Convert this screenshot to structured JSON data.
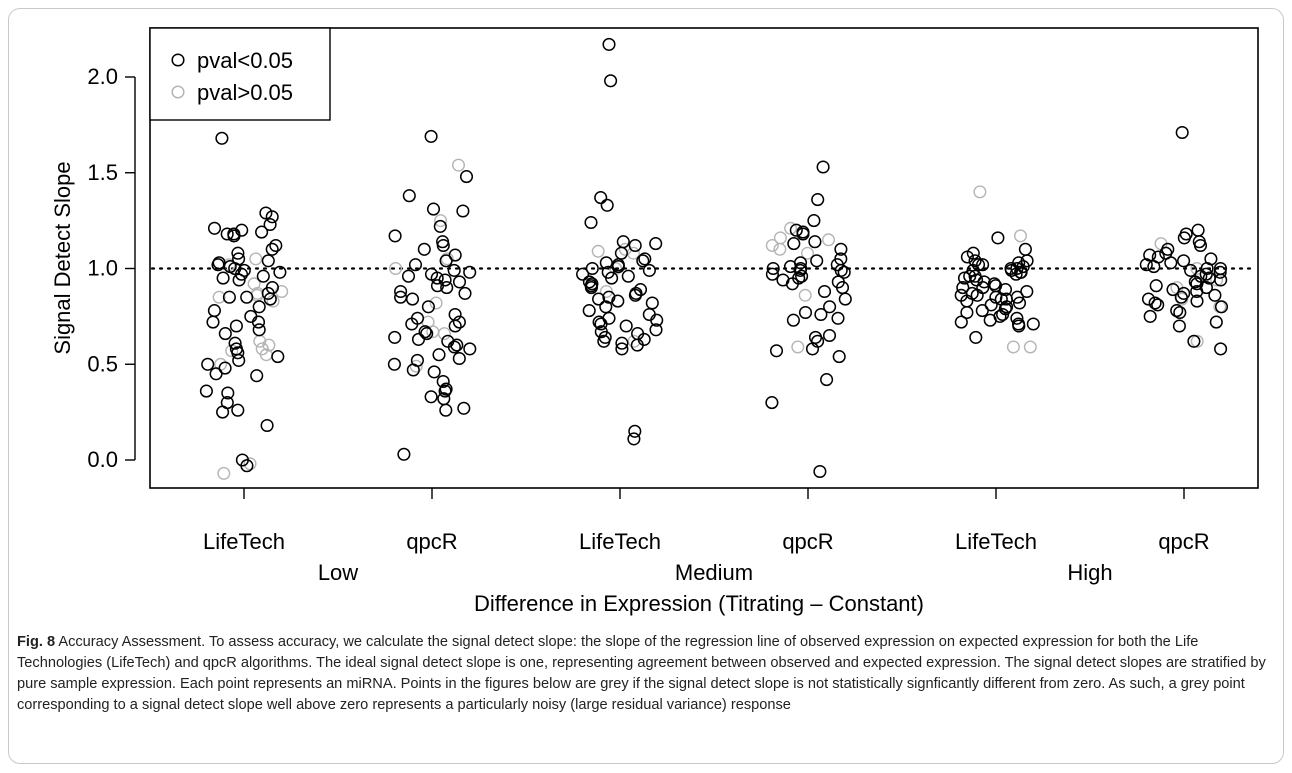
{
  "chart_data": {
    "type": "scatter",
    "title": "",
    "xlabel": "Difference in Expression (Titrating – Constant)",
    "ylabel": "Signal Detect Slope",
    "ylim": [
      -0.15,
      2.22
    ],
    "yticks": [
      "0.0",
      "0.5",
      "1.0",
      "1.5",
      "2.0"
    ],
    "reference_line": {
      "y": 1.0,
      "style": "dotted"
    },
    "grid": false,
    "legend": {
      "placement": "top-left",
      "entries": [
        {
          "label": "pval<0.05",
          "color": "#000000"
        },
        {
          "label": "pval>0.05",
          "color": "#b5b5b5"
        }
      ]
    },
    "groups": [
      {
        "label": "LifeTech",
        "level": "Low",
        "pval_lt_005": [
          1.68,
          1.29,
          1.27,
          1.23,
          1.21,
          1.2,
          1.19,
          1.18,
          1.18,
          1.17,
          1.12,
          1.1,
          1.08,
          1.05,
          1.04,
          1.03,
          1.02,
          1.01,
          1.0,
          0.99,
          0.98,
          0.97,
          0.96,
          0.95,
          0.94,
          0.9,
          0.87,
          0.85,
          0.85,
          0.84,
          0.8,
          0.78,
          0.75,
          0.72,
          0.72,
          0.7,
          0.68,
          0.66,
          0.61,
          0.58,
          0.56,
          0.54,
          0.52,
          0.5,
          0.48,
          0.45,
          0.44,
          0.36,
          0.35,
          0.3,
          0.26,
          0.25,
          0.18,
          0.0,
          -0.03
        ],
        "pval_gt_005": [
          1.05,
          1.02,
          0.92,
          0.88,
          0.87,
          0.86,
          0.85,
          0.83,
          0.62,
          0.6,
          0.58,
          0.57,
          0.55,
          0.5,
          -0.02,
          -0.07
        ]
      },
      {
        "label": "qpcR",
        "level": "Low",
        "pval_lt_005": [
          1.69,
          1.48,
          1.38,
          1.31,
          1.3,
          1.22,
          1.17,
          1.14,
          1.12,
          1.1,
          1.07,
          1.04,
          1.02,
          0.99,
          0.98,
          0.97,
          0.96,
          0.95,
          0.94,
          0.93,
          0.91,
          0.9,
          0.88,
          0.87,
          0.85,
          0.84,
          0.8,
          0.76,
          0.74,
          0.72,
          0.71,
          0.7,
          0.67,
          0.66,
          0.64,
          0.63,
          0.62,
          0.6,
          0.59,
          0.58,
          0.55,
          0.53,
          0.52,
          0.5,
          0.47,
          0.46,
          0.41,
          0.37,
          0.36,
          0.33,
          0.32,
          0.27,
          0.26,
          0.03
        ],
        "pval_gt_005": [
          1.54,
          1.25,
          1.05,
          1.0,
          0.82,
          0.72,
          0.67,
          0.66,
          0.49
        ]
      },
      {
        "label": "LifeTech",
        "level": "Medium",
        "pval_lt_005": [
          2.17,
          1.98,
          1.37,
          1.33,
          1.24,
          1.14,
          1.13,
          1.12,
          1.08,
          1.05,
          1.04,
          1.03,
          1.02,
          1.01,
          1.0,
          0.99,
          0.98,
          0.97,
          0.96,
          0.95,
          0.93,
          0.92,
          0.91,
          0.9,
          0.89,
          0.87,
          0.86,
          0.85,
          0.84,
          0.83,
          0.82,
          0.8,
          0.78,
          0.76,
          0.74,
          0.73,
          0.72,
          0.71,
          0.7,
          0.68,
          0.67,
          0.66,
          0.64,
          0.63,
          0.62,
          0.61,
          0.6,
          0.58,
          0.15,
          0.11
        ],
        "pval_gt_005": [
          1.1,
          1.09,
          1.08,
          1.0,
          0.88,
          0.62
        ]
      },
      {
        "label": "qpcR",
        "level": "Medium",
        "pval_lt_005": [
          1.53,
          1.36,
          1.25,
          1.2,
          1.19,
          1.18,
          1.14,
          1.13,
          1.1,
          1.05,
          1.04,
          1.03,
          1.02,
          1.01,
          1.0,
          1.0,
          0.99,
          0.99,
          0.98,
          0.97,
          0.96,
          0.95,
          0.94,
          0.93,
          0.92,
          0.9,
          0.88,
          0.84,
          0.8,
          0.77,
          0.76,
          0.74,
          0.73,
          0.65,
          0.64,
          0.62,
          0.58,
          0.57,
          0.54,
          0.42,
          0.3,
          -0.06
        ],
        "pval_gt_005": [
          1.21,
          1.16,
          1.15,
          1.12,
          1.1,
          1.08,
          0.86,
          0.59
        ]
      },
      {
        "label": "LifeTech",
        "level": "High",
        "pval_lt_005": [
          1.16,
          1.1,
          1.08,
          1.06,
          1.04,
          1.04,
          1.03,
          1.02,
          1.02,
          1.01,
          1.0,
          1.0,
          0.99,
          0.99,
          0.98,
          0.98,
          0.97,
          0.96,
          0.96,
          0.95,
          0.94,
          0.93,
          0.92,
          0.91,
          0.9,
          0.9,
          0.89,
          0.88,
          0.87,
          0.86,
          0.86,
          0.85,
          0.85,
          0.84,
          0.84,
          0.83,
          0.82,
          0.81,
          0.8,
          0.79,
          0.78,
          0.77,
          0.76,
          0.75,
          0.74,
          0.73,
          0.72,
          0.71,
          0.71,
          0.7,
          0.64
        ],
        "pval_gt_005": [
          1.4,
          1.17,
          0.59,
          0.59
        ]
      },
      {
        "label": "qpcR",
        "level": "High",
        "pval_lt_005": [
          1.71,
          1.2,
          1.18,
          1.16,
          1.14,
          1.12,
          1.1,
          1.08,
          1.07,
          1.06,
          1.05,
          1.04,
          1.03,
          1.02,
          1.01,
          1.0,
          1.0,
          0.99,
          0.98,
          0.97,
          0.96,
          0.95,
          0.94,
          0.93,
          0.92,
          0.91,
          0.9,
          0.89,
          0.88,
          0.87,
          0.86,
          0.85,
          0.84,
          0.83,
          0.82,
          0.81,
          0.8,
          0.78,
          0.77,
          0.75,
          0.72,
          0.7,
          0.62,
          0.58
        ],
        "pval_gt_005": [
          1.13,
          1.0,
          0.94,
          0.9,
          0.84,
          0.8,
          0.62
        ]
      }
    ],
    "group_labels": [
      "LifeTech",
      "qpcR",
      "LifeTech",
      "qpcR",
      "LifeTech",
      "qpcR"
    ],
    "level_labels": [
      "Low",
      "Medium",
      "High"
    ]
  },
  "caption": {
    "label": "Fig. 8",
    "text": " Accuracy Assessment. To assess accuracy, we calculate the signal detect slope: the slope of the regression line of observed expression on expected expression for both the Life Technologies (LifeTech) and qpcR algorithms. The ideal signal detect slope is one, representing agreement between observed and expected expression. The signal detect slopes are stratified by pure sample expression. Each point represents an miRNA. Points in the figures below are grey if the signal detect slope is not statistically signficantly different from zero. As such, a grey point corresponding to a signal detect slope well above zero represents a particularly noisy (large residual variance) response"
  }
}
